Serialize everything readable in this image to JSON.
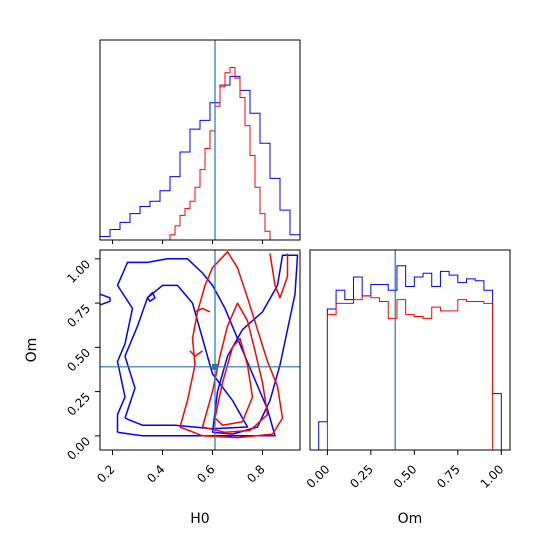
{
  "chart_data": {
    "type": "corner",
    "parameters": [
      "H0",
      "Om"
    ],
    "truth": {
      "H0": 0.61,
      "Om": 0.39
    },
    "colors": {
      "series_a": "#0000ff",
      "series_b": "#ff0000",
      "truth": "#1f77b4"
    },
    "grid": false,
    "panels": [
      {
        "id": "hist-H0",
        "type": "histogram",
        "xlim": [
          0.15,
          0.95
        ],
        "bin_edges": [
          0.15,
          0.19,
          0.23,
          0.27,
          0.31,
          0.35,
          0.39,
          0.43,
          0.47,
          0.51,
          0.55,
          0.59,
          0.63,
          0.67,
          0.71,
          0.75,
          0.79,
          0.83,
          0.87,
          0.91,
          0.95
        ],
        "series": [
          {
            "color": "#0000ff",
            "counts": [
              2,
              6,
              10,
              15,
              19,
              22,
              28,
              36,
              50,
              63,
              68,
              78,
              88,
              93,
              85,
              72,
              55,
              35,
              17,
              3
            ]
          },
          {
            "color": "#ff0000",
            "counts": [
              0,
              0,
              0,
              0,
              0,
              0,
              0,
              0,
              0,
              0,
              0,
              0,
              0,
              0,
              0,
              0,
              0,
              0,
              0,
              0
            ],
            "fine_edges": [
              0.43,
              0.45,
              0.47,
              0.49,
              0.51,
              0.53,
              0.55,
              0.57,
              0.59,
              0.61,
              0.63,
              0.65,
              0.67,
              0.69,
              0.71,
              0.73,
              0.75,
              0.77,
              0.79,
              0.81,
              0.83,
              0.85
            ],
            "fine_counts": [
              3,
              8,
              14,
              18,
              22,
              30,
              40,
              52,
              62,
              76,
              87,
              95,
              98,
              92,
              81,
              65,
              48,
              30,
              15,
              5,
              0
            ]
          }
        ]
      },
      {
        "id": "hist-Om",
        "type": "histogram",
        "xlim": [
          -0.1,
          1.05
        ],
        "xticks": [
          "0.00",
          "0.25",
          "0.50",
          "0.75",
          "1.00"
        ],
        "xlabel": "Om",
        "series": [
          {
            "color": "#0000ff",
            "bin_edges": [
              -0.05,
              0.0,
              0.05,
              0.1,
              0.15,
              0.2,
              0.25,
              0.3,
              0.35,
              0.4,
              0.45,
              0.5,
              0.55,
              0.6,
              0.65,
              0.7,
              0.75,
              0.8,
              0.85,
              0.9,
              0.95,
              1.0
            ],
            "counts": [
              15,
              75,
              85,
              80,
              92,
              82,
              88,
              88,
              85,
              98,
              87,
              92,
              94,
              87,
              95,
              93,
              89,
              91,
              90,
              85,
              30
            ]
          },
          {
            "color": "#ff0000",
            "bin_edges": [
              0.0,
              0.05,
              0.1,
              0.15,
              0.2,
              0.25,
              0.3,
              0.35,
              0.4,
              0.45,
              0.5,
              0.55,
              0.6,
              0.65,
              0.7,
              0.75,
              0.8,
              0.85,
              0.9,
              0.95,
              1.0
            ],
            "counts": [
              72,
              78,
              78,
              80,
              82,
              81,
              79,
              70,
              80,
              72,
              71,
              70,
              76,
              74,
              74,
              80,
              79,
              79,
              78,
              0
            ]
          }
        ]
      },
      {
        "id": "contour-H0-Om",
        "type": "contour",
        "xlim": [
          0.15,
          0.95
        ],
        "ylim": [
          -0.08,
          1.05
        ],
        "xticks": [
          "0.2",
          "0.4",
          "0.6",
          "0.8"
        ],
        "yticks": [
          "0.00",
          "0.25",
          "0.50",
          "0.75",
          "1.00"
        ],
        "xlabel": "H0",
        "ylabel": "Om",
        "contours": [
          {
            "color": "#0000ff",
            "points": [
              [
                0.22,
                0.02
              ],
              [
                0.22,
                0.12
              ],
              [
                0.25,
                0.22
              ],
              [
                0.22,
                0.42
              ],
              [
                0.25,
                0.52
              ],
              [
                0.28,
                0.72
              ],
              [
                0.22,
                0.85
              ],
              [
                0.26,
                0.98
              ],
              [
                0.34,
                0.98
              ],
              [
                0.42,
                1.0
              ],
              [
                0.5,
                1.0
              ],
              [
                0.56,
                0.92
              ],
              [
                0.6,
                0.85
              ],
              [
                0.65,
                0.72
              ],
              [
                0.7,
                0.55
              ],
              [
                0.76,
                0.35
              ],
              [
                0.82,
                0.15
              ],
              [
                0.85,
                0.0
              ],
              [
                0.75,
                0.0
              ],
              [
                0.6,
                0.0
              ],
              [
                0.45,
                0.0
              ],
              [
                0.32,
                0.0
              ],
              [
                0.22,
                0.02
              ]
            ]
          },
          {
            "color": "#0000ff",
            "points": [
              [
                0.25,
                0.1
              ],
              [
                0.29,
                0.27
              ],
              [
                0.25,
                0.45
              ],
              [
                0.3,
                0.62
              ],
              [
                0.34,
                0.78
              ],
              [
                0.4,
                0.85
              ],
              [
                0.46,
                0.85
              ],
              [
                0.52,
                0.75
              ],
              [
                0.56,
                0.55
              ],
              [
                0.6,
                0.35
              ],
              [
                0.68,
                0.2
              ],
              [
                0.74,
                0.05
              ],
              [
                0.6,
                0.04
              ],
              [
                0.45,
                0.06
              ],
              [
                0.32,
                0.06
              ],
              [
                0.25,
                0.1
              ]
            ]
          },
          {
            "color": "#0000ff",
            "points": [
              [
                0.6,
                0.02
              ],
              [
                0.62,
                0.25
              ],
              [
                0.66,
                0.45
              ],
              [
                0.72,
                0.6
              ],
              [
                0.8,
                0.7
              ],
              [
                0.86,
                0.85
              ],
              [
                0.88,
                1.02
              ],
              [
                0.94,
                1.02
              ],
              [
                0.93,
                0.8
              ],
              [
                0.9,
                0.6
              ],
              [
                0.87,
                0.4
              ],
              [
                0.83,
                0.2
              ],
              [
                0.78,
                0.05
              ],
              [
                0.68,
                0.01
              ],
              [
                0.6,
                0.02
              ]
            ]
          },
          {
            "color": "#0000ff",
            "points": [
              [
                0.15,
                0.8
              ],
              [
                0.19,
                0.78
              ],
              [
                0.19,
                0.76
              ],
              [
                0.15,
                0.74
              ]
            ]
          },
          {
            "color": "#0000ff",
            "points": [
              [
                0.34,
                0.78
              ],
              [
                0.36,
                0.81
              ],
              [
                0.37,
                0.78
              ],
              [
                0.35,
                0.76
              ],
              [
                0.34,
                0.78
              ]
            ]
          },
          {
            "color": "#ff0000",
            "points": [
              [
                0.47,
                0.05
              ],
              [
                0.5,
                0.2
              ],
              [
                0.53,
                0.4
              ],
              [
                0.52,
                0.55
              ],
              [
                0.54,
                0.7
              ],
              [
                0.57,
                0.85
              ],
              [
                0.6,
                0.95
              ],
              [
                0.66,
                1.04
              ],
              [
                0.7,
                0.95
              ],
              [
                0.74,
                0.78
              ],
              [
                0.78,
                0.6
              ],
              [
                0.82,
                0.42
              ],
              [
                0.86,
                0.28
              ],
              [
                0.88,
                0.1
              ],
              [
                0.84,
                0.01
              ],
              [
                0.7,
                -0.01
              ],
              [
                0.56,
                0.0
              ],
              [
                0.47,
                0.05
              ]
            ]
          },
          {
            "color": "#ff0000",
            "points": [
              [
                0.56,
                0.05
              ],
              [
                0.6,
                0.25
              ],
              [
                0.63,
                0.45
              ],
              [
                0.66,
                0.62
              ],
              [
                0.7,
                0.75
              ],
              [
                0.74,
                0.65
              ],
              [
                0.77,
                0.48
              ],
              [
                0.8,
                0.3
              ],
              [
                0.82,
                0.12
              ],
              [
                0.75,
                0.03
              ],
              [
                0.65,
                0.02
              ],
              [
                0.56,
                0.05
              ]
            ]
          },
          {
            "color": "#ff0000",
            "points": [
              [
                0.61,
                0.1
              ],
              [
                0.64,
                0.3
              ],
              [
                0.68,
                0.5
              ],
              [
                0.71,
                0.55
              ],
              [
                0.74,
                0.4
              ],
              [
                0.76,
                0.22
              ],
              [
                0.72,
                0.08
              ],
              [
                0.64,
                0.06
              ],
              [
                0.61,
                0.1
              ]
            ]
          },
          {
            "color": "#ff0000",
            "points": [
              [
                0.83,
                1.03
              ],
              [
                0.85,
                0.85
              ],
              [
                0.87,
                0.78
              ],
              [
                0.9,
                0.9
              ],
              [
                0.9,
                1.03
              ]
            ]
          },
          {
            "color": "#ff0000",
            "points": [
              [
                0.53,
                0.7
              ],
              [
                0.56,
                0.72
              ],
              [
                0.59,
                0.7
              ]
            ]
          },
          {
            "color": "#ff0000",
            "points": [
              [
                0.51,
                0.48
              ],
              [
                0.53,
                0.45
              ],
              [
                0.56,
                0.48
              ]
            ]
          }
        ]
      }
    ]
  }
}
